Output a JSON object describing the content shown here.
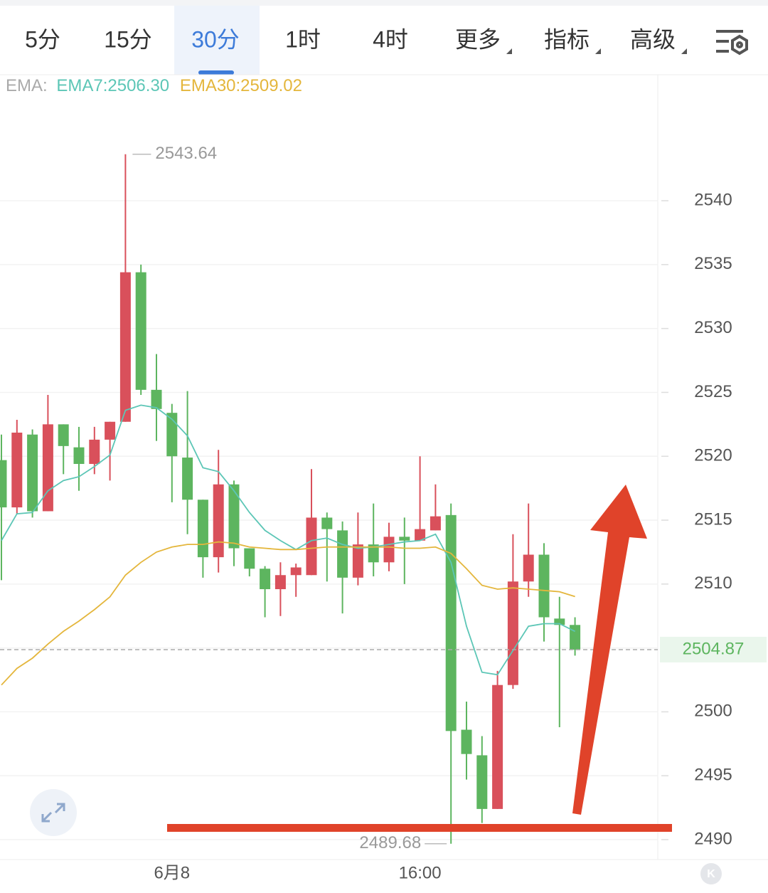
{
  "toolbar": {
    "tabs": [
      {
        "label": "5分"
      },
      {
        "label": "15分"
      },
      {
        "label": "30分"
      },
      {
        "label": "1时"
      },
      {
        "label": "4时"
      },
      {
        "label": "更多",
        "dropdown": true
      },
      {
        "label": "指标",
        "dropdown": true
      },
      {
        "label": "高级",
        "dropdown": true
      }
    ],
    "active": 2
  },
  "chart_data": {
    "type": "candlestick",
    "indicator_label": "EMA:",
    "categories": [
      null,
      null,
      null,
      null,
      null,
      null,
      null,
      null,
      null,
      null,
      null,
      "6月8",
      null,
      null,
      null,
      null,
      null,
      null,
      null,
      null,
      null,
      null,
      null,
      null,
      null,
      null,
      null,
      "16:00",
      null,
      null,
      null,
      null,
      null,
      null,
      null,
      null,
      null,
      null
    ],
    "open": [
      2519.7,
      2516.0,
      2521.7,
      2515.7,
      2522.5,
      2520.7,
      2519.4,
      2521.3,
      2522.7,
      2534.4,
      2525.2,
      2523.4,
      2519.9,
      2516.6,
      2512.1,
      2517.8,
      2512.8,
      2511.2,
      2509.6,
      2510.7,
      2510.7,
      2515.2,
      2514.2,
      2510.5,
      2513.1,
      2511.7,
      2513.7,
      2513.4,
      2514.2,
      2515.4,
      2498.6,
      2496.6,
      2492.4,
      2502.1,
      2510.2,
      2512.3,
      2507.3,
      2506.8
    ],
    "high": [
      2521.7,
      2522.85,
      2522.1,
      2524.8,
      2522.5,
      2522.3,
      2522.3,
      2522.7,
      2543.64,
      2535.0,
      2528.0,
      2524.1,
      2525.1,
      2516.6,
      2520.5,
      2518.1,
      2512.8,
      2511.4,
      2511.7,
      2511.6,
      2519.0,
      2515.6,
      2514.9,
      2515.6,
      2516.3,
      2514.8,
      2515.2,
      2520.0,
      2517.8,
      2516.3,
      2500.8,
      2498.1,
      2503.2,
      2513.9,
      2516.3,
      2513.2,
      2509.0,
      2507.4
    ],
    "low": [
      2510.3,
      2515.5,
      2515.2,
      2515.7,
      2518.6,
      2517.3,
      2518.6,
      2518.1,
      2522.7,
      2524.8,
      2521.2,
      2516.4,
      2513.9,
      2510.5,
      2510.9,
      2511.4,
      2510.6,
      2507.4,
      2507.5,
      2509.0,
      2510.7,
      2510.2,
      2507.7,
      2509.9,
      2510.6,
      2511.0,
      2510.0,
      2513.4,
      2514.2,
      2489.68,
      2494.7,
      2491.3,
      2492.4,
      2501.8,
      2509.0,
      2505.5,
      2498.8,
      2504.4
    ],
    "close": [
      2516.0,
      2521.85,
      2515.7,
      2522.5,
      2520.8,
      2519.4,
      2521.3,
      2522.7,
      2534.4,
      2525.2,
      2523.7,
      2520.0,
      2516.6,
      2512.1,
      2517.8,
      2512.8,
      2511.2,
      2509.6,
      2510.7,
      2511.3,
      2515.2,
      2514.3,
      2510.5,
      2513.1,
      2511.7,
      2513.7,
      2513.4,
      2514.3,
      2515.3,
      2498.5,
      2496.7,
      2492.4,
      2502.1,
      2510.2,
      2512.3,
      2507.4,
      2506.8,
      2504.87
    ],
    "up_color": "#d9505b",
    "down_color": "#5db55f",
    "series": [
      {
        "name": "EMA7:2506.30",
        "color": "#5cc6b6",
        "values": [
          2513.4,
          2515.5,
          2515.6,
          2517.3,
          2518.1,
          2518.4,
          2519.2,
          2520.1,
          2523.6,
          2524.0,
          2523.8,
          2522.9,
          2521.6,
          2519.1,
          2518.8,
          2517.3,
          2515.6,
          2514.2,
          2513.4,
          2512.7,
          2513.4,
          2513.6,
          2513.1,
          2512.8,
          2512.9,
          2513.1,
          2513.3,
          2513.4,
          2513.9,
          2511.7,
          2506.7,
          2503.1,
          2502.9,
          2504.8,
          2506.7,
          2506.9,
          2506.9,
          2506.3
        ]
      },
      {
        "name": "EMA30:2509.02",
        "color": "#e4b63c",
        "values": [
          2502.1,
          2503.4,
          2504.2,
          2505.3,
          2506.3,
          2507.1,
          2508.0,
          2509.0,
          2510.7,
          2511.7,
          2512.5,
          2512.9,
          2513.1,
          2513.1,
          2513.3,
          2513.2,
          2512.9,
          2512.8,
          2512.7,
          2512.7,
          2512.8,
          2512.9,
          2512.9,
          2512.9,
          2512.9,
          2512.9,
          2512.8,
          2512.8,
          2512.9,
          2512.4,
          2511.2,
          2509.9,
          2509.6,
          2509.7,
          2509.6,
          2509.5,
          2509.4,
          2509.02
        ]
      }
    ],
    "ylim": [
      2488.44,
      2549.86
    ],
    "yticks": [
      2490,
      2495,
      2500,
      2505,
      2510,
      2515,
      2520,
      2525,
      2530,
      2535,
      2540
    ],
    "grid": true
  }
}
